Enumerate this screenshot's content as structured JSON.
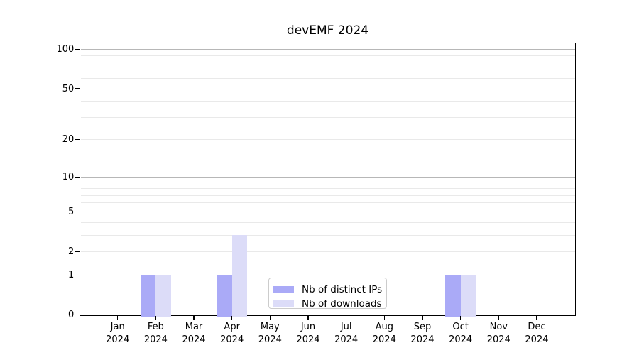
{
  "window": {
    "background": "#ffffff"
  },
  "chart_data": {
    "type": "bar",
    "title": "devEMF 2024",
    "x": {
      "months": [
        "Jan",
        "Feb",
        "Mar",
        "Apr",
        "May",
        "Jun",
        "Jul",
        "Aug",
        "Sep",
        "Oct",
        "Nov",
        "Dec"
      ],
      "year": "2024"
    },
    "series": [
      {
        "name": "Nb of distinct IPs",
        "color": "#aaaaf7",
        "values": [
          0,
          1,
          0,
          1,
          0,
          0,
          0,
          0,
          0,
          1,
          0,
          0
        ]
      },
      {
        "name": "Nb of downloads",
        "color": "#dcdcf8",
        "values": [
          0,
          1,
          0,
          3,
          0,
          0,
          0,
          0,
          0,
          1,
          0,
          0
        ]
      }
    ],
    "y_axis": {
      "scale": "log1p",
      "tick_values": [
        0,
        1,
        2,
        5,
        10,
        20,
        50,
        100
      ],
      "range": [
        0,
        100
      ]
    },
    "gridlines": {
      "major_values": [
        1,
        10,
        100
      ],
      "minor_values": [
        2,
        3,
        4,
        5,
        6,
        7,
        8,
        9,
        20,
        30,
        40,
        50,
        60,
        70,
        80,
        90
      ],
      "major_color": "#b7b7b7",
      "minor_color": "#e9e9e9"
    },
    "legend": {
      "position": "inside-bottom-center",
      "entries": [
        "Nb of distinct IPs",
        "Nb of downloads"
      ]
    },
    "frame_color": "#000000"
  }
}
